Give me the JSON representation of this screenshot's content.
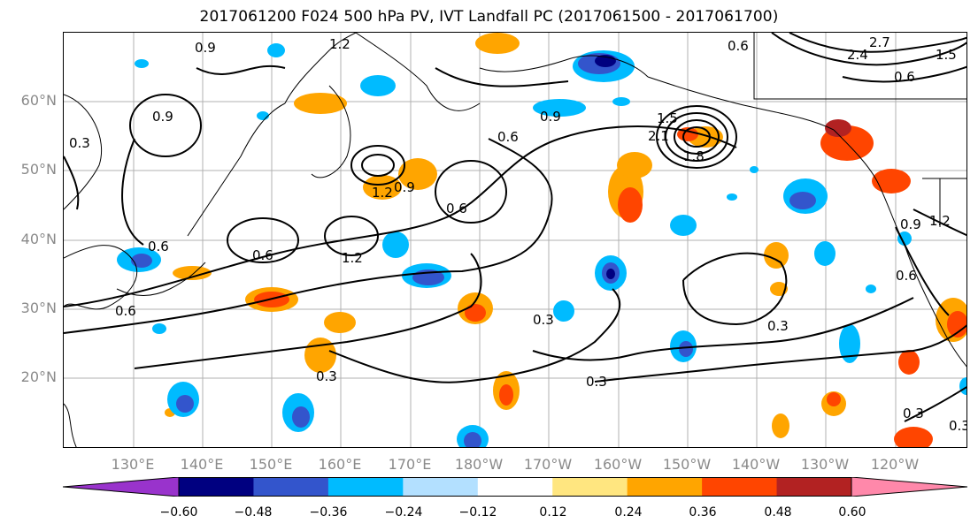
{
  "title": "2017061200 F024 500 hPa PV, IVT Landfall PC (2017061500 - 2017061700)",
  "lat_labels": [
    "60°N",
    "50°N",
    "40°N",
    "30°N",
    "20°N"
  ],
  "lon_labels": [
    "130°E",
    "140°E",
    "150°E",
    "160°E",
    "170°E",
    "180°W",
    "170°W",
    "160°W",
    "150°W",
    "140°W",
    "130°W",
    "120°W"
  ],
  "colorbar": {
    "ticks": [
      "−0.60",
      "−0.48",
      "−0.36",
      "−0.24",
      "−0.12",
      "0.12",
      "0.24",
      "0.36",
      "0.48",
      "0.60"
    ],
    "colors": [
      "#9933cc",
      "#000080",
      "#3355cc",
      "#00bbff",
      "#b3e0ff",
      "#ffffff",
      "#ffe680",
      "#ffa500",
      "#ff4500",
      "#b22222",
      "#ff88aa"
    ]
  },
  "contour_labels": [
    "0.9",
    "1.2",
    "0.9",
    "0.3",
    "0.6",
    "0.6",
    "1.2",
    "0.9",
    "0.6",
    "1.2",
    "0.6",
    "0.6",
    "1.5",
    "2.1",
    "2.4",
    "1.5",
    "0.6",
    "1.8",
    "0.9",
    "1.2",
    "0.6",
    "0.9",
    "0.3",
    "0.3",
    "0.3",
    "0.3",
    "0.3",
    "2.7",
    "0.6",
    "0.3"
  ]
}
